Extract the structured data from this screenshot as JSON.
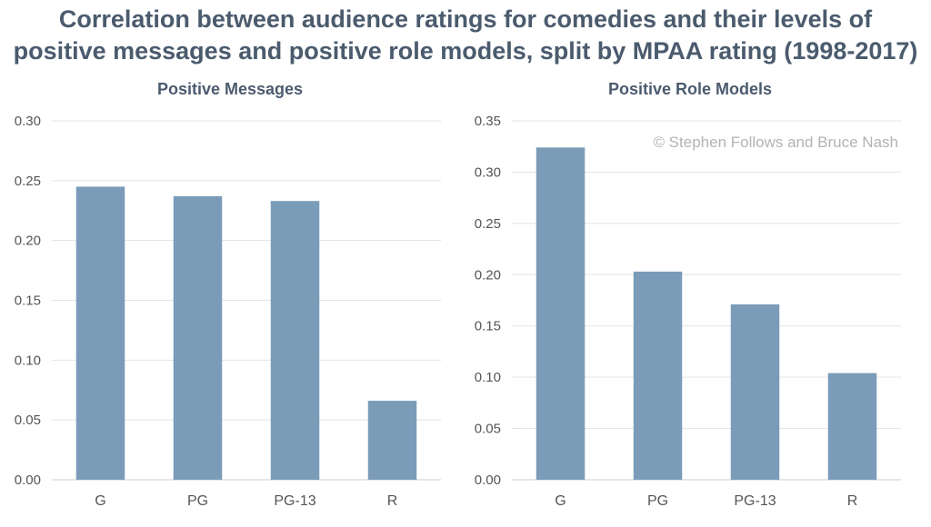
{
  "title_lines": [
    "Correlation between audience ratings for comedies and their levels of",
    "positive messages and positive role models, split by MPAA rating (1998-2017)"
  ],
  "credit": "© Stephen Follows and Bruce Nash",
  "colors": {
    "bar": "#7b9cb8",
    "grid": "#e3e3e3",
    "axis": "#cccccc",
    "title": "#4b5b6e"
  },
  "chart_data": [
    {
      "type": "bar",
      "title": "Positive Messages",
      "categories": [
        "G",
        "PG",
        "PG-13",
        "R"
      ],
      "values": [
        0.245,
        0.237,
        0.233,
        0.066
      ],
      "ylim": [
        0,
        0.3
      ],
      "yticks": [
        "0.00",
        "0.05",
        "0.10",
        "0.15",
        "0.20",
        "0.25",
        "0.30"
      ],
      "grid": true
    },
    {
      "type": "bar",
      "title": "Positive Role Models",
      "categories": [
        "G",
        "PG",
        "PG-13",
        "R"
      ],
      "values": [
        0.324,
        0.203,
        0.171,
        0.104
      ],
      "ylim": [
        0,
        0.35
      ],
      "yticks": [
        "0.00",
        "0.05",
        "0.10",
        "0.15",
        "0.20",
        "0.25",
        "0.30",
        "0.35"
      ],
      "grid": true
    }
  ]
}
